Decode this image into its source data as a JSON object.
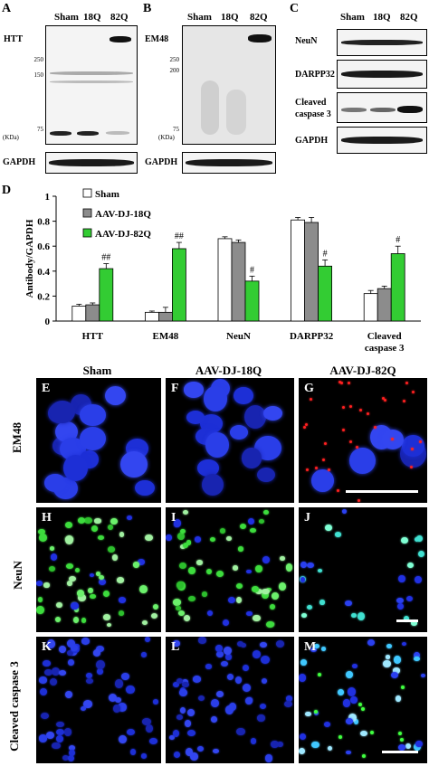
{
  "panels": {
    "A": "A",
    "B": "B",
    "C": "C",
    "D": "D",
    "E": "E",
    "F": "F",
    "G": "G",
    "H": "H",
    "I": "I",
    "J": "J",
    "K": "K",
    "L": "L",
    "M": "M"
  },
  "blot_lanes": {
    "sham": "Sham",
    "q18": "18Q",
    "q82": "82Q"
  },
  "blot_A": {
    "label": "HTT",
    "gapdh": "GAPDH",
    "mw": [
      "250",
      "150",
      "75"
    ],
    "unit": "(KDa)"
  },
  "blot_B": {
    "label": "EM48",
    "gapdh": "GAPDH",
    "mw": [
      "250",
      "200",
      "75"
    ],
    "unit": "(KDa)"
  },
  "blot_C": {
    "labels": [
      "NeuN",
      "DARPP32",
      "Cleaved",
      "caspase 3",
      "GAPDH"
    ]
  },
  "chart_data": {
    "type": "bar",
    "ylabel": "Antibody/GAPDH",
    "ylim": [
      0,
      1.0
    ],
    "yticks": [
      "0",
      "0.2",
      "0.4",
      "0.6",
      "0.8",
      "1"
    ],
    "categories": [
      "HTT",
      "EM48",
      "NeuN",
      "DARPP32",
      "Cleaved"
    ],
    "category_line2": [
      "",
      "",
      "",
      "",
      "caspase 3"
    ],
    "series": [
      {
        "name": "Sham",
        "color": "#ffffff",
        "values": [
          0.12,
          0.07,
          0.66,
          0.81,
          0.22
        ],
        "errors": [
          0.015,
          0.01,
          0.015,
          0.02,
          0.025
        ]
      },
      {
        "name": "AAV-DJ-18Q",
        "color": "#8c8c8c",
        "values": [
          0.13,
          0.07,
          0.63,
          0.79,
          0.26
        ],
        "errors": [
          0.015,
          0.04,
          0.02,
          0.04,
          0.02
        ]
      },
      {
        "name": "AAV-DJ-82Q",
        "color": "#33cc33",
        "values": [
          0.42,
          0.58,
          0.32,
          0.44,
          0.54
        ],
        "errors": [
          0.04,
          0.05,
          0.04,
          0.05,
          0.06
        ]
      }
    ],
    "annotations": [
      "##",
      "##",
      "#",
      "#",
      "#"
    ]
  },
  "micro_cols": [
    "Sham",
    "AAV-DJ-18Q",
    "AAV-DJ-82Q"
  ],
  "micro_rows": [
    "EM48",
    "NeuN",
    "Cleaved caspase 3"
  ]
}
